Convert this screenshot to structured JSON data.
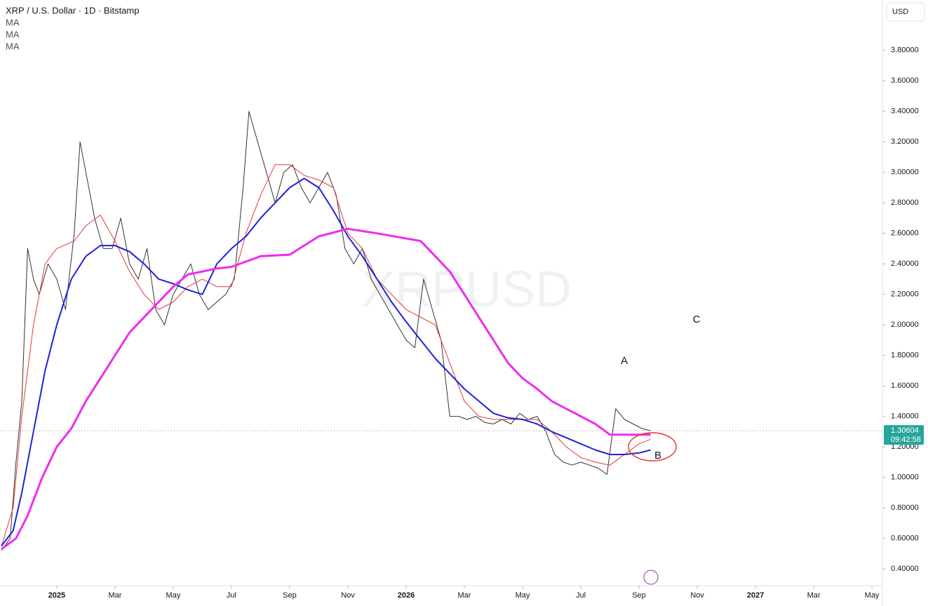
{
  "chart_data": {
    "type": "line",
    "title": "XRP / U.S. Dollar · 1D · Bitstamp",
    "currency": "USD",
    "watermark": "XRPUSD",
    "last_price": 1.30604,
    "last_price_label": "1.30604",
    "countdown": "09:42:58",
    "annotations": [
      "A",
      "B",
      "C"
    ],
    "xlim": [
      -1.95,
      28.36
    ],
    "ylim": [
      0.29,
      4.13
    ],
    "xticks": [
      {
        "value": 0,
        "label": "2025"
      },
      {
        "value": 2,
        "label": "Mar"
      },
      {
        "value": 4,
        "label": "May"
      },
      {
        "value": 6,
        "label": "Jul"
      },
      {
        "value": 8,
        "label": "Sep"
      },
      {
        "value": 10,
        "label": "Nov"
      },
      {
        "value": 12,
        "label": "2026"
      },
      {
        "value": 14,
        "label": "Mar"
      },
      {
        "value": 16,
        "label": "May"
      },
      {
        "value": 18,
        "label": "Jul"
      },
      {
        "value": 20,
        "label": "Sep"
      },
      {
        "value": 22,
        "label": "Nov"
      },
      {
        "value": 24,
        "label": "2027"
      },
      {
        "value": 26,
        "label": "Mar"
      },
      {
        "value": 28,
        "label": "May"
      }
    ],
    "yticks": [
      {
        "value": 0.4,
        "label": "0.40000"
      },
      {
        "value": 0.6,
        "label": "0.60000"
      },
      {
        "value": 0.8,
        "label": "0.80000"
      },
      {
        "value": 1,
        "label": "1.00000"
      },
      {
        "value": 1.2,
        "label": "1.20000"
      },
      {
        "value": 1.4,
        "label": "1.40000"
      },
      {
        "value": 1.6,
        "label": "1.60000"
      },
      {
        "value": 1.8,
        "label": "1.80000"
      },
      {
        "value": 2,
        "label": "2.00000"
      },
      {
        "value": 2.2,
        "label": "2.20000"
      },
      {
        "value": 2.4,
        "label": "2.40000"
      },
      {
        "value": 2.6,
        "label": "2.60000"
      },
      {
        "value": 2.8,
        "label": "2.80000"
      },
      {
        "value": 3,
        "label": "3.00000"
      },
      {
        "value": 3.2,
        "label": "3.20000"
      },
      {
        "value": 3.4,
        "label": "3.40000"
      },
      {
        "value": 3.6,
        "label": "3.60000"
      },
      {
        "value": 3.8,
        "label": "3.80000"
      }
    ],
    "series": [
      {
        "color": "#333333",
        "width": 1,
        "x": [
          -1.9,
          -1.6,
          -1.4,
          -1.2,
          -1.0,
          -0.8,
          -0.6,
          -0.3,
          0,
          0.3,
          0.6,
          0.8,
          1.0,
          1.3,
          1.6,
          1.9,
          2.2,
          2.5,
          2.8,
          3.1,
          3.4,
          3.7,
          4.0,
          4.3,
          4.6,
          4.9,
          5.2,
          5.5,
          5.8,
          6.1,
          6.4,
          6.6,
          6.9,
          7.2,
          7.5,
          7.8,
          8.1,
          8.4,
          8.7,
          9.0,
          9.3,
          9.6,
          9.9,
          10.2,
          10.5,
          10.8,
          11.1,
          11.4,
          11.7,
          12.0,
          12.3,
          12.6,
          12.9,
          13.2,
          13.5,
          13.8,
          14.1,
          14.4,
          14.7,
          15.0,
          15.3,
          15.6,
          15.9,
          16.2,
          16.5,
          16.8,
          17.1,
          17.4,
          17.7,
          18.0,
          18.3,
          18.6,
          18.9,
          19.2,
          19.5,
          19.8,
          20.1,
          20.4
        ],
        "values": [
          0.52,
          0.6,
          1.1,
          1.5,
          2.5,
          2.3,
          2.2,
          2.4,
          2.3,
          2.1,
          2.6,
          3.2,
          3.0,
          2.7,
          2.5,
          2.5,
          2.7,
          2.4,
          2.3,
          2.5,
          2.1,
          2.0,
          2.2,
          2.3,
          2.4,
          2.2,
          2.1,
          2.15,
          2.2,
          2.3,
          2.9,
          3.4,
          3.2,
          3.0,
          2.8,
          3.0,
          3.05,
          2.9,
          2.8,
          2.9,
          3.0,
          2.85,
          2.5,
          2.4,
          2.5,
          2.3,
          2.2,
          2.1,
          2.0,
          1.9,
          1.85,
          2.3,
          2.1,
          1.9,
          1.4,
          1.4,
          1.38,
          1.4,
          1.36,
          1.35,
          1.38,
          1.35,
          1.42,
          1.38,
          1.4,
          1.3,
          1.15,
          1.1,
          1.08,
          1.1,
          1.08,
          1.06,
          1.02,
          1.45,
          1.38,
          1.35,
          1.32,
          1.30604
        ]
      },
      {
        "name": "MA",
        "color": "#e53935",
        "width": 1,
        "x": [
          -1.9,
          -1.5,
          -1.2,
          -0.8,
          -0.4,
          0,
          0.6,
          1.0,
          1.5,
          2.0,
          2.5,
          3.0,
          3.5,
          4.0,
          4.5,
          5.0,
          5.5,
          6.0,
          6.5,
          7.0,
          7.5,
          8.0,
          8.5,
          9.0,
          9.5,
          10.0,
          10.5,
          11.0,
          11.5,
          12.0,
          12.5,
          13.0,
          13.5,
          14.0,
          14.5,
          15.0,
          15.5,
          16.0,
          16.5,
          17.0,
          17.5,
          18.0,
          18.5,
          19.0,
          19.5,
          20.0,
          20.4
        ],
        "values": [
          0.55,
          0.8,
          1.4,
          2.0,
          2.4,
          2.5,
          2.55,
          2.65,
          2.72,
          2.55,
          2.35,
          2.2,
          2.1,
          2.15,
          2.25,
          2.3,
          2.25,
          2.25,
          2.6,
          2.85,
          3.05,
          3.05,
          2.98,
          2.95,
          2.9,
          2.6,
          2.5,
          2.3,
          2.2,
          2.1,
          2.05,
          2.0,
          1.75,
          1.5,
          1.4,
          1.38,
          1.38,
          1.38,
          1.38,
          1.3,
          1.2,
          1.13,
          1.1,
          1.08,
          1.15,
          1.22,
          1.25
        ]
      },
      {
        "name": "MA",
        "color": "#1e22d8",
        "width": 2,
        "x": [
          -1.9,
          -1.5,
          -1.2,
          -0.8,
          -0.4,
          0,
          0.5,
          1.0,
          1.5,
          2.0,
          2.5,
          3.0,
          3.5,
          4.0,
          4.5,
          5.0,
          5.5,
          6.0,
          6.5,
          7.0,
          7.5,
          8.0,
          8.5,
          9.0,
          9.5,
          10.0,
          10.5,
          11.0,
          11.5,
          12.0,
          12.5,
          13.0,
          13.5,
          14.0,
          14.5,
          15.0,
          15.5,
          16.0,
          16.5,
          17.0,
          17.5,
          18.0,
          18.5,
          19.0,
          19.5,
          20.0,
          20.4
        ],
        "values": [
          0.55,
          0.65,
          0.9,
          1.3,
          1.7,
          2.0,
          2.3,
          2.45,
          2.52,
          2.52,
          2.48,
          2.4,
          2.3,
          2.27,
          2.23,
          2.2,
          2.4,
          2.5,
          2.58,
          2.7,
          2.8,
          2.9,
          2.96,
          2.9,
          2.75,
          2.58,
          2.45,
          2.3,
          2.15,
          2.02,
          1.9,
          1.78,
          1.68,
          1.58,
          1.5,
          1.42,
          1.39,
          1.38,
          1.35,
          1.3,
          1.26,
          1.22,
          1.18,
          1.15,
          1.15,
          1.16,
          1.18
        ]
      },
      {
        "name": "MA",
        "color": "#ee2cf0",
        "width": 3,
        "x": [
          -1.9,
          -1.4,
          -1,
          -0.5,
          0,
          0.5,
          1,
          1.5,
          2,
          2.5,
          3,
          3.5,
          4,
          4.5,
          5,
          5.5,
          6,
          7,
          8,
          9,
          10,
          11,
          12.5,
          13,
          13.5,
          14,
          14.5,
          15,
          15.5,
          16,
          16.5,
          17,
          17.5,
          18,
          18.5,
          19,
          19.5,
          20,
          20.4
        ],
        "values": [
          0.53,
          0.6,
          0.75,
          1.0,
          1.2,
          1.32,
          1.5,
          1.65,
          1.8,
          1.95,
          2.05,
          2.15,
          2.25,
          2.33,
          2.35,
          2.37,
          2.38,
          2.45,
          2.46,
          2.58,
          2.63,
          2.6,
          2.55,
          2.45,
          2.35,
          2.2,
          2.05,
          1.9,
          1.75,
          1.65,
          1.58,
          1.5,
          1.45,
          1.4,
          1.35,
          1.28,
          1.28,
          1.28,
          1.28
        ]
      }
    ]
  }
}
